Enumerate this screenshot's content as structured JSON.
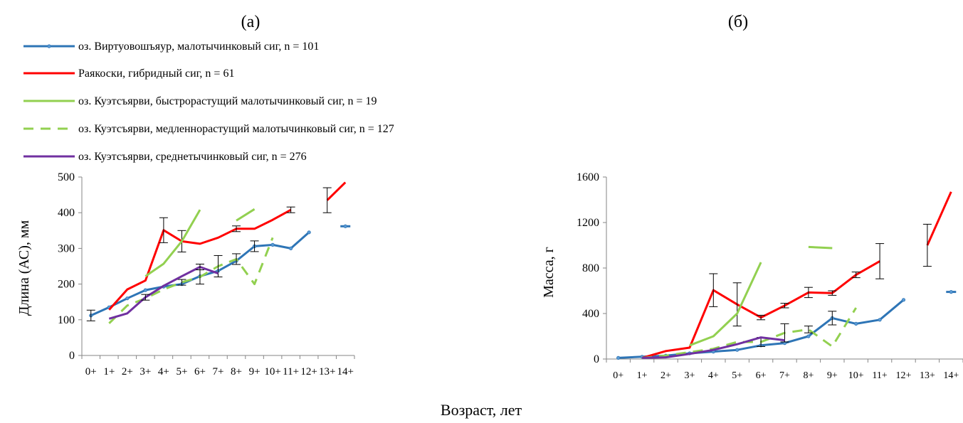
{
  "figure": {
    "shared_xlabel": "Возраст, лет"
  },
  "legend": {
    "entries": [
      {
        "label": "оз. Виртуовошъяур, малотычинковый сиг, n = 101",
        "color": "#2e75b6",
        "dash": false,
        "marker": true
      },
      {
        "label": "Раякоски, гибридный сиг, n = 61",
        "color": "#ff0000",
        "dash": false,
        "marker": false
      },
      {
        "label": "оз. Куэтсъярви, быстрорастущий малотычинковый сиг, n = 19",
        "color": "#92d050",
        "dash": false,
        "marker": false
      },
      {
        "label": "оз. Куэтсъярви, медленнорастущий малотычинковый сиг, n = 127",
        "color": "#92d050",
        "dash": true,
        "marker": false
      },
      {
        "label": "оз. Куэтсъярви, среднетычинковый сиг, n =  276",
        "color": "#7030a0",
        "dash": false,
        "marker": false
      }
    ]
  },
  "chart_data": [
    {
      "panel_label": "(а)",
      "type": "line",
      "ylabel": "Длина (АС), мм",
      "ylim": [
        0,
        500
      ],
      "yticks": [
        "0",
        "100",
        "200",
        "300",
        "400",
        "500"
      ],
      "categories": [
        "0+",
        "1+",
        "2+",
        "3+",
        "4+",
        "5+",
        "6+",
        "7+",
        "8+",
        "9+",
        "10+",
        "11+",
        "12+",
        "13+",
        "14+"
      ],
      "series": [
        {
          "values": [
            112,
            135,
            160,
            183,
            193,
            200,
            222,
            237,
            265,
            306,
            310,
            300,
            345,
            null,
            362
          ],
          "errors": [
            15,
            0,
            0,
            0,
            0,
            0,
            0,
            0,
            0,
            15,
            0,
            0,
            0,
            0,
            0
          ]
        },
        {
          "values": [
            null,
            128,
            185,
            210,
            351,
            320,
            313,
            330,
            355,
            355,
            380,
            408,
            null,
            435,
            485
          ],
          "errors": [
            0,
            0,
            0,
            0,
            35,
            30,
            0,
            0,
            8,
            0,
            0,
            8,
            0,
            35,
            0
          ]
        },
        {
          "values": [
            null,
            null,
            null,
            222,
            257,
            320,
            408,
            null,
            null,
            null,
            null,
            null,
            null,
            null,
            null
          ],
          "errors": []
        },
        {
          "values": [
            null,
            90,
            140,
            160,
            185,
            205,
            220,
            250,
            270,
            200,
            330,
            null,
            null,
            null,
            null
          ],
          "errors": [
            0,
            0,
            0,
            0,
            0,
            8,
            20,
            30,
            15,
            0,
            0,
            0,
            0,
            0,
            0
          ]
        },
        {
          "values": [
            null,
            103,
            118,
            163,
            195,
            222,
            248,
            230,
            null,
            null,
            null,
            null,
            null,
            null,
            null
          ],
          "errors": [
            0,
            0,
            0,
            8,
            0,
            0,
            8,
            0,
            0,
            0,
            0,
            0,
            0,
            0,
            0
          ]
        }
      ],
      "extra_segments": [
        {
          "series": 2,
          "from": 8,
          "from_value": 378,
          "to": 9,
          "to_value": 410
        }
      ]
    },
    {
      "panel_label": "(б)",
      "type": "line",
      "ylabel": "Масса, г",
      "ylim": [
        0,
        1600
      ],
      "yticks": [
        "0",
        "400",
        "800",
        "1200",
        "1600"
      ],
      "categories": [
        "0+",
        "1+",
        "2+",
        "3+",
        "4+",
        "5+",
        "6+",
        "7+",
        "8+",
        "9+",
        "10+",
        "11+",
        "12+",
        "13+",
        "14+"
      ],
      "series": [
        {
          "values": [
            10,
            20,
            30,
            50,
            65,
            80,
            120,
            140,
            200,
            360,
            310,
            345,
            520,
            null,
            590
          ],
          "errors": [
            0,
            0,
            0,
            0,
            0,
            0,
            0,
            0,
            0,
            60,
            0,
            0,
            0,
            0,
            0
          ]
        },
        {
          "values": [
            null,
            10,
            70,
            100,
            605,
            480,
            365,
            470,
            585,
            580,
            740,
            860,
            null,
            1000,
            1470
          ],
          "errors": [
            0,
            0,
            0,
            0,
            145,
            190,
            20,
            20,
            45,
            20,
            25,
            155,
            0,
            185,
            0
          ]
        },
        {
          "values": [
            null,
            null,
            null,
            120,
            200,
            400,
            850,
            null,
            null,
            null,
            null,
            null,
            null,
            null,
            null
          ],
          "errors": []
        },
        {
          "values": [
            null,
            10,
            30,
            60,
            90,
            150,
            150,
            230,
            260,
            110,
            450,
            null,
            null,
            null,
            null
          ],
          "errors": [
            0,
            0,
            0,
            0,
            0,
            0,
            40,
            80,
            30,
            0,
            0,
            0,
            0,
            0,
            0
          ]
        },
        {
          "values": [
            null,
            10,
            15,
            45,
            80,
            130,
            190,
            165,
            null,
            null,
            null,
            null,
            null,
            null,
            null
          ],
          "errors": [
            0,
            0,
            0,
            0,
            0,
            0,
            0,
            0,
            0,
            0,
            0,
            0,
            0,
            0,
            0
          ]
        }
      ],
      "extra_segments": [
        {
          "series": 2,
          "from": 8,
          "from_value": 985,
          "to": 9,
          "to_value": 975
        }
      ]
    }
  ]
}
